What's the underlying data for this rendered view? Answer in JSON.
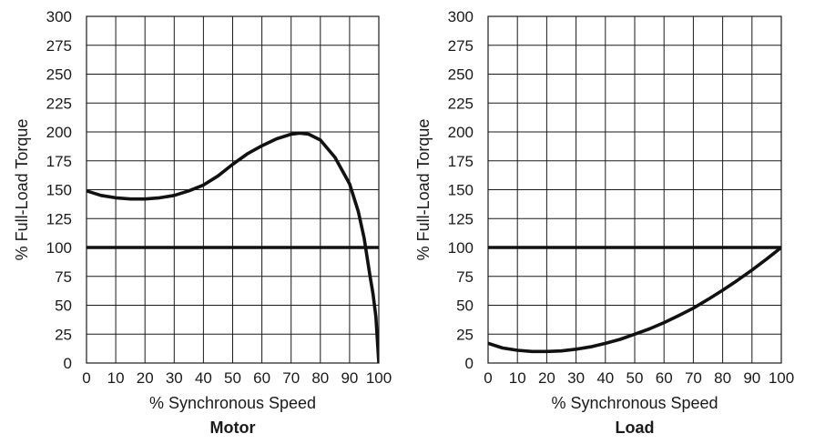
{
  "chart_data": [
    {
      "type": "line",
      "title": "Motor",
      "xlabel": "% Synchronous Speed",
      "ylabel": "% Full-Load Torque",
      "xlim": [
        0,
        100
      ],
      "ylim": [
        0,
        300
      ],
      "xticks": [
        0,
        10,
        20,
        30,
        40,
        50,
        60,
        70,
        80,
        90,
        100
      ],
      "yticks": [
        0,
        25,
        50,
        75,
        100,
        125,
        150,
        175,
        200,
        225,
        250,
        275,
        300
      ],
      "grid": true,
      "series": [
        {
          "x": [
            0,
            5,
            10,
            15,
            20,
            25,
            30,
            35,
            40,
            45,
            50,
            55,
            60,
            65,
            70,
            73,
            76,
            80,
            85,
            90,
            93,
            95,
            97,
            98,
            99,
            99.5,
            100
          ],
          "y": [
            149,
            145,
            143,
            142,
            142,
            143,
            145,
            149,
            154,
            162,
            172,
            181,
            188,
            194,
            198,
            199,
            198,
            193,
            178,
            155,
            131,
            108,
            75,
            60,
            40,
            20,
            0
          ]
        },
        {
          "x": [
            0,
            100
          ],
          "y": [
            100,
            100
          ]
        }
      ]
    },
    {
      "type": "line",
      "title": "Load",
      "xlabel": "% Synchronous Speed",
      "ylabel": "% Full-Load Torque",
      "xlim": [
        0,
        100
      ],
      "ylim": [
        0,
        300
      ],
      "xticks": [
        0,
        10,
        20,
        30,
        40,
        50,
        60,
        70,
        80,
        90,
        100
      ],
      "yticks": [
        0,
        25,
        50,
        75,
        100,
        125,
        150,
        175,
        200,
        225,
        250,
        275,
        300
      ],
      "grid": true,
      "series": [
        {
          "x": [
            -4,
            0,
            5,
            10,
            15,
            20,
            25,
            30,
            35,
            40,
            45,
            50,
            55,
            60,
            65,
            70,
            75,
            80,
            85,
            90,
            95,
            100
          ],
          "y": [
            22,
            17,
            13,
            11,
            10,
            10,
            10.5,
            12,
            14,
            17,
            20.5,
            25,
            29.5,
            35,
            41,
            47.5,
            55,
            63,
            71.5,
            80.5,
            90,
            100
          ]
        },
        {
          "x": [
            0,
            100
          ],
          "y": [
            100,
            100
          ]
        }
      ]
    }
  ]
}
